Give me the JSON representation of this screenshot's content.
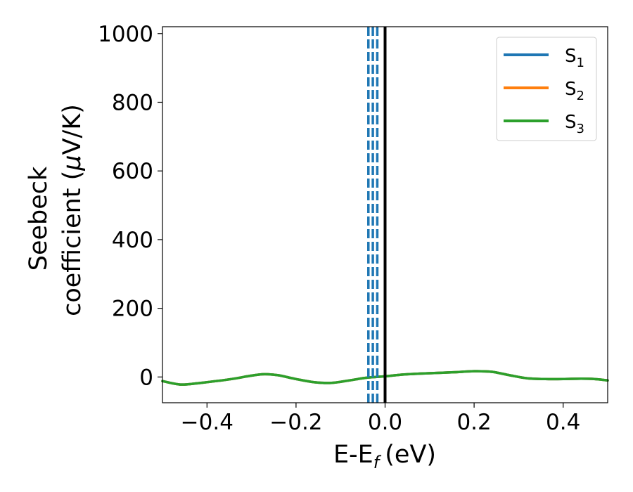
{
  "chart_data": {
    "type": "line",
    "title": "",
    "xlabel": "E-E",
    "xlabel_subscript": "f",
    "xlabel_unit": "(eV)",
    "ylabel_line1": "Seebeck",
    "ylabel_line2_prefix": "coefficient  (",
    "ylabel_mu": "μ",
    "ylabel_line2_suffix": "V/K)",
    "xlim": [
      -0.5,
      0.5
    ],
    "ylim": [
      -75,
      1020
    ],
    "xticks": [
      -0.4,
      -0.2,
      0.0,
      0.2,
      0.4
    ],
    "xtick_labels": [
      "−0.4",
      "−0.2",
      "0.0",
      "0.2",
      "0.4"
    ],
    "yticks": [
      0,
      200,
      400,
      600,
      800,
      1000
    ],
    "ytick_labels": [
      "0",
      "200",
      "400",
      "600",
      "800",
      "1000"
    ],
    "grid": false,
    "legend_position": "top-right",
    "series": [
      {
        "name": "S",
        "subscript": "1",
        "color": "#1f77b4",
        "x": [
          -0.5,
          -0.46,
          -0.42,
          -0.38,
          -0.34,
          -0.3,
          -0.27,
          -0.24,
          -0.2,
          -0.16,
          -0.12,
          -0.08,
          -0.04,
          0.0,
          0.04,
          0.08,
          0.12,
          0.16,
          0.2,
          0.24,
          0.28,
          0.32,
          0.36,
          0.4,
          0.44,
          0.47,
          0.5
        ],
        "values": [
          -12,
          -22,
          -18,
          -12,
          -5,
          4,
          8,
          5,
          -6,
          -15,
          -17,
          -10,
          -2,
          2,
          7,
          10,
          12,
          14,
          17,
          15,
          5,
          -4,
          -6,
          -6,
          -5,
          -6,
          -10
        ]
      },
      {
        "name": "S",
        "subscript": "2",
        "color": "#ff7f0e",
        "x": [
          -0.5,
          -0.46,
          -0.42,
          -0.38,
          -0.34,
          -0.3,
          -0.27,
          -0.24,
          -0.2,
          -0.16,
          -0.12,
          -0.08,
          -0.04,
          0.0,
          0.04,
          0.08,
          0.12,
          0.16,
          0.2,
          0.24,
          0.28,
          0.32,
          0.36,
          0.4,
          0.44,
          0.47,
          0.5
        ],
        "values": [
          -12,
          -22,
          -18,
          -12,
          -5,
          4,
          8,
          5,
          -6,
          -15,
          -17,
          -10,
          -2,
          2,
          7,
          10,
          12,
          14,
          17,
          15,
          5,
          -4,
          -6,
          -6,
          -5,
          -6,
          -10
        ]
      },
      {
        "name": "S",
        "subscript": "3",
        "color": "#2ca02c",
        "x": [
          -0.5,
          -0.46,
          -0.42,
          -0.38,
          -0.34,
          -0.3,
          -0.27,
          -0.24,
          -0.2,
          -0.16,
          -0.12,
          -0.08,
          -0.04,
          0.0,
          0.04,
          0.08,
          0.12,
          0.16,
          0.2,
          0.24,
          0.28,
          0.32,
          0.36,
          0.4,
          0.44,
          0.47,
          0.5
        ],
        "values": [
          -12,
          -22,
          -18,
          -12,
          -5,
          4,
          8,
          5,
          -6,
          -15,
          -17,
          -10,
          -2,
          2,
          7,
          10,
          12,
          14,
          17,
          15,
          5,
          -4,
          -6,
          -6,
          -5,
          -6,
          -10
        ]
      }
    ],
    "reference_lines": [
      {
        "x": -0.0375,
        "color": "#1f77b4",
        "style": "dashed"
      },
      {
        "x": -0.0275,
        "color": "#1f77b4",
        "style": "dashed"
      },
      {
        "x": -0.0175,
        "color": "#1f77b4",
        "style": "dashed"
      },
      {
        "x": 0.0,
        "color": "#000000",
        "style": "solid"
      }
    ]
  }
}
